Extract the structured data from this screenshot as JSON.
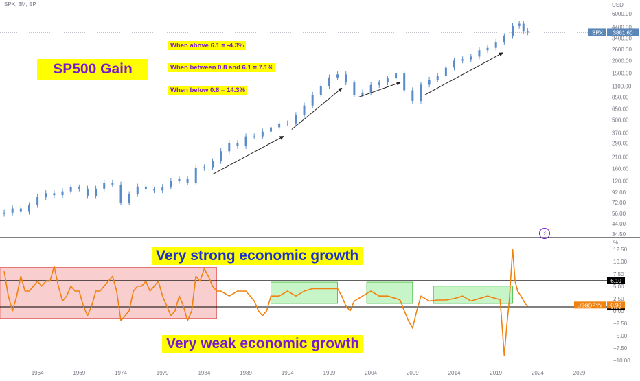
{
  "header": {
    "symbol_line": "SPX, 3M, SP"
  },
  "annotations": {
    "title": "SP500 Gain",
    "above": "When above 6.1 = -4.3%",
    "between": "When between 0.8 and 6.1 = 7.1%",
    "below": "When below 0.8 = 14.3%",
    "strong": "Very strong economic growth",
    "weak": "Very weak economic growth",
    "bolt_icon": "lightning-icon"
  },
  "colors": {
    "candle": "#5b8cc9",
    "gdp_line": "#f0820f",
    "red_zone": "#f4b4b4",
    "green_zone": "#b6f2b6",
    "price_label_bg": "#5b86b8",
    "gdp_label_bg": "#f0820f",
    "ref_label_bg": "#000000",
    "grid_text": "#787b86"
  },
  "chart_data": [
    {
      "type": "candlestick",
      "title": "SPX, 3M, SP",
      "series_label": "SPX",
      "last_value_label": "3861.60",
      "axis_unit": "USD",
      "y_scale": "log",
      "y_ticks": [
        "6000.00",
        "4400.00",
        "3400.00",
        "2600.00",
        "2000.00",
        "1500.00",
        "1100.00",
        "850.00",
        "650.00",
        "500.00",
        "370.00",
        "290.00",
        "210.00",
        "160.00",
        "120.00",
        "92.00",
        "72.00",
        "56.00",
        "44.00",
        "34.50"
      ],
      "ylim": [
        34.5,
        6000
      ],
      "xlim": [
        1959.5,
        2032
      ],
      "values": [
        [
          1960,
          57
        ],
        [
          1961,
          63
        ],
        [
          1962,
          58
        ],
        [
          1963,
          68
        ],
        [
          1964,
          82
        ],
        [
          1965,
          90
        ],
        [
          1966,
          86
        ],
        [
          1967,
          94
        ],
        [
          1968,
          103
        ],
        [
          1969,
          100
        ],
        [
          1970,
          84
        ],
        [
          1971,
          100
        ],
        [
          1972,
          115
        ],
        [
          1973,
          110
        ],
        [
          1974,
          72
        ],
        [
          1975,
          88
        ],
        [
          1976,
          105
        ],
        [
          1977,
          98
        ],
        [
          1978,
          96
        ],
        [
          1979,
          104
        ],
        [
          1980,
          120
        ],
        [
          1981,
          125
        ],
        [
          1982,
          115
        ],
        [
          1983,
          162
        ],
        [
          1984,
          165
        ],
        [
          1985,
          190
        ],
        [
          1986,
          240
        ],
        [
          1987,
          290
        ],
        [
          1988,
          270
        ],
        [
          1989,
          340
        ],
        [
          1990,
          340
        ],
        [
          1991,
          380
        ],
        [
          1992,
          420
        ],
        [
          1993,
          460
        ],
        [
          1994,
          460
        ],
        [
          1995,
          560
        ],
        [
          1996,
          700
        ],
        [
          1997,
          900
        ],
        [
          1998,
          1100
        ],
        [
          1999,
          1350
        ],
        [
          2000,
          1450
        ],
        [
          2001,
          1200
        ],
        [
          2002,
          900
        ],
        [
          2003,
          950
        ],
        [
          2004,
          1130
        ],
        [
          2005,
          1200
        ],
        [
          2006,
          1320
        ],
        [
          2007,
          1480
        ],
        [
          2008,
          1000
        ],
        [
          2009,
          780
        ],
        [
          2010,
          1140
        ],
        [
          2011,
          1280
        ],
        [
          2012,
          1400
        ],
        [
          2013,
          1700
        ],
        [
          2014,
          2000
        ],
        [
          2015,
          2060
        ],
        [
          2016,
          2200
        ],
        [
          2017,
          2550
        ],
        [
          2018,
          2700
        ],
        [
          2019,
          3100
        ],
        [
          2020,
          3550
        ],
        [
          2021,
          4500
        ],
        [
          2021.8,
          4750
        ],
        [
          2022.3,
          4000
        ],
        [
          2022.8,
          3861.6
        ]
      ],
      "arrows": [
        [
          [
            1985,
            140
          ],
          [
            1993.5,
            340
          ]
        ],
        [
          [
            1994.5,
            400
          ],
          [
            2000.5,
            1050
          ]
        ],
        [
          [
            2002.5,
            850
          ],
          [
            2007.5,
            1200
          ]
        ],
        [
          [
            2010.5,
            900
          ],
          [
            2019.8,
            2400
          ]
        ]
      ]
    },
    {
      "type": "line",
      "series_label": "USGDPYY",
      "last_value_label": "0.90",
      "axis_unit": "%",
      "y_ticks": [
        "12.50",
        "10.00",
        "7.50",
        "5.00",
        "2.50",
        "0.00",
        "−2.50",
        "−5.00",
        "−7.50",
        "−10.00"
      ],
      "ylim": [
        -11,
        14
      ],
      "xlim": [
        1959.5,
        2032
      ],
      "x_ticks": [
        "1964",
        "1969",
        "1974",
        "1979",
        "1984",
        "1989",
        "1994",
        "1999",
        "2004",
        "2009",
        "2014",
        "2019",
        "2024",
        "2029"
      ],
      "reference_lines": [
        {
          "value": 6.1,
          "label": "6.10"
        },
        {
          "value": 0.8,
          "label": "0.80"
        }
      ],
      "zones": [
        {
          "kind": "red",
          "x0": 1959.5,
          "x1": 1985.5,
          "y0": -1.5,
          "y1": 8.8
        },
        {
          "kind": "green",
          "x0": 1992,
          "x1": 2000,
          "y0": 1.5,
          "y1": 5.8
        },
        {
          "kind": "green",
          "x0": 2003.5,
          "x1": 2009,
          "y0": 1.5,
          "y1": 5.8
        },
        {
          "kind": "green",
          "x0": 2011.5,
          "x1": 2021,
          "y0": 1.5,
          "y1": 5.0
        }
      ],
      "x": [
        1960,
        1960.5,
        1961,
        1961.5,
        1962,
        1962.5,
        1963,
        1963.5,
        1964,
        1964.5,
        1965,
        1965.5,
        1966,
        1966.5,
        1967,
        1967.5,
        1968,
        1968.5,
        1969,
        1969.5,
        1970,
        1970.5,
        1971,
        1971.5,
        1972,
        1972.5,
        1973,
        1973.5,
        1974,
        1974.5,
        1975,
        1975.5,
        1976,
        1976.5,
        1977,
        1977.5,
        1978,
        1978.5,
        1979,
        1979.5,
        1980,
        1980.5,
        1981,
        1981.5,
        1982,
        1982.5,
        1983,
        1983.5,
        1984,
        1984.5,
        1985,
        1985.5,
        1986,
        1987,
        1988,
        1989,
        1990,
        1990.5,
        1991,
        1991.5,
        1992,
        1993,
        1994,
        1995,
        1996,
        1997,
        1998,
        1999,
        2000,
        2000.5,
        2001,
        2001.5,
        2002,
        2003,
        2004,
        2005,
        2006,
        2007,
        2007.5,
        2008,
        2008.5,
        2009,
        2009.5,
        2010,
        2011,
        2012,
        2013,
        2014,
        2015,
        2016,
        2017,
        2018,
        2019,
        2019.5,
        2020,
        2020.3,
        2020.6,
        2021,
        2021.3,
        2021.6,
        2022,
        2022.5,
        2022.8
      ],
      "values": [
        8,
        3,
        0,
        3,
        7,
        4,
        4,
        5,
        6,
        5,
        6,
        6,
        9,
        5,
        2,
        3,
        5,
        4,
        4,
        1,
        -1,
        1,
        4,
        4,
        5,
        6,
        7,
        4,
        -2,
        -1,
        0,
        4,
        5,
        5,
        6,
        4,
        5,
        6,
        3,
        1,
        -1,
        0,
        3,
        1,
        -2,
        0,
        7,
        6,
        8.5,
        7,
        5,
        4,
        4,
        3,
        4,
        4,
        2,
        0,
        -1,
        0,
        3,
        3,
        4,
        3,
        4,
        4.5,
        4.5,
        4.5,
        4.5,
        3,
        1,
        0,
        2,
        3,
        4,
        3,
        3,
        2.5,
        2.2,
        0,
        -2,
        -3.5,
        0,
        3,
        2,
        2.2,
        2.2,
        2.5,
        3,
        2,
        2.5,
        3,
        2.5,
        2.3,
        -9,
        -3,
        2,
        12.5,
        6,
        4,
        3,
        1.5,
        0.9
      ]
    }
  ]
}
